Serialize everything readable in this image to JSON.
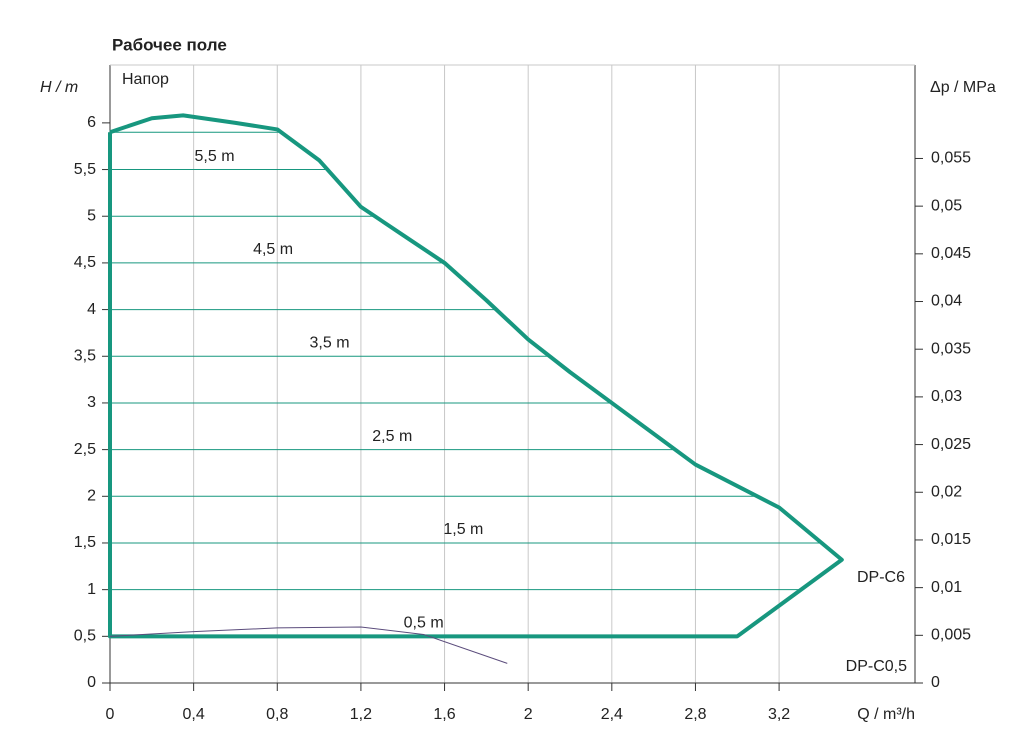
{
  "chart_data": {
    "type": "line",
    "title": "Рабочее поле",
    "subtitle": "Напор",
    "ylabel": "H / m",
    "y2label": "Δp / MPa",
    "xlabel": "Q / m³/h",
    "xlim": [
      0,
      3.85
    ],
    "ylim": [
      0,
      6.62
    ],
    "y2lim": [
      0,
      0.0648
    ],
    "xticks": [
      0,
      {
        "value": 0.4,
        "label": "0,4"
      },
      {
        "value": 0.8,
        "label": "0,8"
      },
      {
        "value": 1.2,
        "label": "1,2"
      },
      {
        "value": 1.6,
        "label": "1,6"
      },
      2,
      {
        "value": 2.4,
        "label": "2,4"
      },
      {
        "value": 2.8,
        "label": "2,8"
      },
      {
        "value": 3.2,
        "label": "3,2"
      }
    ],
    "yticks": [
      0,
      {
        "value": 0.5,
        "label": "0,5"
      },
      1,
      {
        "value": 1.5,
        "label": "1,5"
      },
      2,
      {
        "value": 2.5,
        "label": "2,5"
      },
      3,
      {
        "value": 3.5,
        "label": "3,5"
      },
      4,
      {
        "value": 4.5,
        "label": "4,5"
      },
      5,
      {
        "value": 5.5,
        "label": "5,5"
      },
      6
    ],
    "y2ticks": [
      0,
      {
        "value": 0.005,
        "label": "0,005"
      },
      {
        "value": 0.01,
        "label": "0,01"
      },
      {
        "value": 0.015,
        "label": "0,015"
      },
      {
        "value": 0.02,
        "label": "0,02"
      },
      {
        "value": 0.025,
        "label": "0,025"
      },
      {
        "value": 0.03,
        "label": "0,03"
      },
      {
        "value": 0.035,
        "label": "0,035"
      },
      {
        "value": 0.04,
        "label": "0,04"
      },
      {
        "value": 0.045,
        "label": "0,045"
      },
      {
        "value": 0.05,
        "label": "0,05"
      },
      {
        "value": 0.055,
        "label": "0,055"
      }
    ],
    "grid": true,
    "setpoint_lines": [
      1,
      1.5,
      2,
      2.5,
      3,
      3.5,
      4,
      4.5,
      5,
      5.5,
      5.9
    ],
    "annotations": [
      {
        "text": "5,5 m",
        "x": 0.5,
        "y": 5.5
      },
      {
        "text": "4,5 m",
        "x": 0.78,
        "y": 4.5
      },
      {
        "text": "3,5 m",
        "x": 1.05,
        "y": 3.5
      },
      {
        "text": "2,5 m",
        "x": 1.35,
        "y": 2.5
      },
      {
        "text": "1,5 m",
        "x": 1.69,
        "y": 1.5
      },
      {
        "text": "0,5 m",
        "x": 1.5,
        "y": 0.5
      }
    ],
    "series": [
      {
        "name": "DP-C6",
        "color": "#17977f",
        "x": [
          0,
          0.2,
          0.35,
          0.6,
          0.8,
          1.0,
          1.2,
          1.4,
          1.6,
          1.8,
          2.0,
          2.2,
          2.4,
          2.8,
          3.2,
          3.5,
          3.0,
          0,
          0
        ],
        "values": [
          5.9,
          6.05,
          6.08,
          6.0,
          5.93,
          5.6,
          5.1,
          4.8,
          4.5,
          4.1,
          3.68,
          3.33,
          3.0,
          2.34,
          1.88,
          1.32,
          0.5,
          0.5,
          5.9
        ]
      },
      {
        "name": "DP-C0,5",
        "color": "#5b4c7c",
        "x": [
          0,
          0.4,
          0.8,
          1.2,
          1.5,
          1.9
        ],
        "values": [
          0.5,
          0.55,
          0.59,
          0.6,
          0.52,
          0.21
        ]
      }
    ]
  }
}
